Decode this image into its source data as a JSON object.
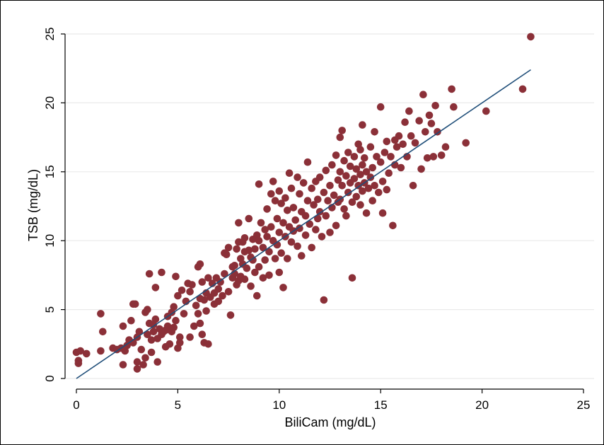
{
  "chart_data": {
    "type": "scatter",
    "title": "",
    "xlabel": "BiliCam (mg/dL)",
    "ylabel": "TSB (mg/dL)",
    "xlim": [
      0,
      25
    ],
    "ylim": [
      0,
      25
    ],
    "xticks": [
      0,
      5,
      10,
      15,
      20,
      25
    ],
    "yticks": [
      0,
      5,
      10,
      15,
      20,
      25
    ],
    "grid": "horizontal",
    "point_color": "#8b3038",
    "line_color": "#1f4e79",
    "fit_line": {
      "x": [
        0,
        22.4
      ],
      "y": [
        0.0,
        22.4
      ]
    },
    "series": [
      {
        "points": [
          [
            0,
            1.9
          ],
          [
            0.1,
            1.3
          ],
          [
            0.1,
            1.1
          ],
          [
            0.2,
            2.0
          ],
          [
            0.5,
            1.8
          ],
          [
            1.2,
            2.0
          ],
          [
            1.2,
            4.7
          ],
          [
            1.3,
            3.4
          ],
          [
            1.8,
            2.2
          ],
          [
            2.0,
            2.1
          ],
          [
            2.2,
            2.2
          ],
          [
            2.3,
            1.0
          ],
          [
            2.3,
            3.8
          ],
          [
            2.4,
            2.0
          ],
          [
            2.5,
            2.4
          ],
          [
            2.6,
            2.8
          ],
          [
            2.7,
            4.2
          ],
          [
            2.8,
            5.4
          ],
          [
            2.8,
            2.6
          ],
          [
            2.9,
            5.4
          ],
          [
            3.0,
            3.0
          ],
          [
            3.0,
            1.2
          ],
          [
            3.0,
            0.7
          ],
          [
            3.1,
            3.4
          ],
          [
            3.2,
            2.1
          ],
          [
            3.3,
            1.0
          ],
          [
            3.4,
            1.5
          ],
          [
            3.4,
            4.8
          ],
          [
            3.5,
            5.0
          ],
          [
            3.5,
            3.2
          ],
          [
            3.6,
            7.6
          ],
          [
            3.6,
            4.0
          ],
          [
            3.7,
            2.8
          ],
          [
            3.7,
            1.9
          ],
          [
            3.8,
            3.4
          ],
          [
            3.8,
            3.9
          ],
          [
            3.9,
            6.6
          ],
          [
            3.9,
            4.3
          ],
          [
            4.0,
            2.9
          ],
          [
            4.0,
            1.2
          ],
          [
            4.1,
            3.6
          ],
          [
            4.2,
            7.7
          ],
          [
            4.2,
            3.2
          ],
          [
            4.3,
            3.4
          ],
          [
            4.4,
            3.5
          ],
          [
            4.4,
            2.3
          ],
          [
            4.5,
            3.8
          ],
          [
            4.5,
            4.5
          ],
          [
            4.6,
            2.5
          ],
          [
            4.7,
            3.4
          ],
          [
            4.7,
            4.8
          ],
          [
            4.8,
            3.7
          ],
          [
            4.8,
            5.2
          ],
          [
            4.9,
            7.4
          ],
          [
            4.9,
            4.2
          ],
          [
            5.0,
            6.0
          ],
          [
            5.0,
            2.2
          ],
          [
            5.1,
            3.0
          ],
          [
            5.1,
            2.6
          ],
          [
            5.2,
            6.4
          ],
          [
            5.3,
            4.7
          ],
          [
            5.4,
            5.6
          ],
          [
            5.5,
            6.9
          ],
          [
            5.6,
            6.3
          ],
          [
            5.6,
            3.0
          ],
          [
            5.7,
            6.8
          ],
          [
            5.8,
            3.8
          ],
          [
            5.9,
            5.3
          ],
          [
            6.0,
            8.1
          ],
          [
            6.0,
            4.7
          ],
          [
            6.1,
            8.3
          ],
          [
            6.1,
            5.8
          ],
          [
            6.1,
            4.0
          ],
          [
            6.2,
            7.0
          ],
          [
            6.2,
            3.2
          ],
          [
            6.3,
            5.7
          ],
          [
            6.3,
            2.6
          ],
          [
            6.4,
            6.2
          ],
          [
            6.4,
            4.9
          ],
          [
            6.5,
            7.3
          ],
          [
            6.5,
            2.5
          ],
          [
            6.6,
            5.9
          ],
          [
            6.7,
            6.9
          ],
          [
            6.8,
            5.4
          ],
          [
            6.8,
            6.2
          ],
          [
            6.9,
            7.3
          ],
          [
            7.0,
            6.5
          ],
          [
            7.0,
            5.6
          ],
          [
            7.1,
            7.0
          ],
          [
            7.2,
            6.0
          ],
          [
            7.3,
            9.1
          ],
          [
            7.3,
            7.6
          ],
          [
            7.4,
            9.0
          ],
          [
            7.5,
            9.5
          ],
          [
            7.5,
            6.3
          ],
          [
            7.6,
            4.6
          ],
          [
            7.7,
            7.3
          ],
          [
            7.7,
            8.1
          ],
          [
            7.8,
            8.2
          ],
          [
            7.8,
            7.6
          ],
          [
            7.9,
            9.4
          ],
          [
            7.9,
            6.8
          ],
          [
            8.0,
            11.3
          ],
          [
            8.0,
            9.9
          ],
          [
            8.0,
            7.1
          ],
          [
            8.1,
            8.7
          ],
          [
            8.1,
            7.4
          ],
          [
            8.2,
            9.9
          ],
          [
            8.2,
            8.3
          ],
          [
            8.3,
            10.2
          ],
          [
            8.3,
            9.2
          ],
          [
            8.3,
            7.2
          ],
          [
            8.4,
            8.0
          ],
          [
            8.5,
            9.3
          ],
          [
            8.5,
            11.6
          ],
          [
            8.6,
            8.8
          ],
          [
            8.6,
            6.7
          ],
          [
            8.7,
            10.1
          ],
          [
            8.7,
            8.6
          ],
          [
            8.8,
            9.4
          ],
          [
            8.8,
            7.7
          ],
          [
            8.9,
            10.4
          ],
          [
            8.9,
            6.0
          ],
          [
            9.0,
            10.0
          ],
          [
            9.0,
            8.1
          ],
          [
            9.0,
            14.1
          ],
          [
            9.1,
            11.3
          ],
          [
            9.2,
            9.5
          ],
          [
            9.2,
            7.3
          ],
          [
            9.3,
            10.8
          ],
          [
            9.3,
            8.6
          ],
          [
            9.4,
            12.3
          ],
          [
            9.4,
            10.3
          ],
          [
            9.5,
            9.2
          ],
          [
            9.5,
            7.5
          ],
          [
            9.6,
            13.4
          ],
          [
            9.6,
            11.0
          ],
          [
            9.7,
            14.3
          ],
          [
            9.7,
            10.0
          ],
          [
            9.8,
            12.9
          ],
          [
            9.8,
            8.7
          ],
          [
            9.9,
            11.6
          ],
          [
            9.9,
            9.7
          ],
          [
            10.0,
            13.6
          ],
          [
            10.0,
            10.6
          ],
          [
            10.0,
            7.7
          ],
          [
            10.1,
            12.7
          ],
          [
            10.1,
            9.1
          ],
          [
            10.2,
            11.3
          ],
          [
            10.2,
            6.6
          ],
          [
            10.3,
            13.1
          ],
          [
            10.3,
            10.3
          ],
          [
            10.4,
            12.2
          ],
          [
            10.4,
            8.7
          ],
          [
            10.5,
            14.9
          ],
          [
            10.5,
            11.0
          ],
          [
            10.6,
            13.8
          ],
          [
            10.6,
            9.9
          ],
          [
            10.7,
            12.4
          ],
          [
            10.7,
            10.7
          ],
          [
            10.8,
            11.5
          ],
          [
            10.9,
            14.6
          ],
          [
            10.9,
            9.6
          ],
          [
            11.0,
            13.4
          ],
          [
            11.0,
            10.9
          ],
          [
            11.1,
            12.1
          ],
          [
            11.1,
            8.9
          ],
          [
            11.2,
            14.2
          ],
          [
            11.3,
            11.8
          ],
          [
            11.3,
            10.4
          ],
          [
            11.4,
            15.7
          ],
          [
            11.4,
            12.9
          ],
          [
            11.5,
            11.2
          ],
          [
            11.6,
            13.8
          ],
          [
            11.6,
            9.5
          ],
          [
            11.7,
            12.6
          ],
          [
            11.8,
            14.3
          ],
          [
            11.8,
            10.8
          ],
          [
            11.9,
            13.0
          ],
          [
            11.9,
            11.6
          ],
          [
            12.0,
            14.6
          ],
          [
            12.0,
            12.1
          ],
          [
            12.1,
            10.3
          ],
          [
            12.2,
            5.7
          ],
          [
            12.2,
            13.5
          ],
          [
            12.3,
            15.1
          ],
          [
            12.3,
            11.8
          ],
          [
            12.4,
            12.9
          ],
          [
            12.5,
            14.0
          ],
          [
            12.5,
            10.6
          ],
          [
            12.6,
            15.5
          ],
          [
            12.6,
            12.4
          ],
          [
            12.7,
            13.3
          ],
          [
            12.8,
            16.2
          ],
          [
            12.8,
            11.1
          ],
          [
            12.9,
            14.4
          ],
          [
            12.9,
            12.8
          ],
          [
            13.0,
            17.5
          ],
          [
            13.0,
            15.0
          ],
          [
            13.0,
            13.0
          ],
          [
            13.1,
            18.0
          ],
          [
            13.1,
            14.0
          ],
          [
            13.2,
            15.8
          ],
          [
            13.2,
            12.3
          ],
          [
            13.3,
            14.7
          ],
          [
            13.3,
            11.8
          ],
          [
            13.4,
            16.4
          ],
          [
            13.4,
            13.5
          ],
          [
            13.5,
            15.4
          ],
          [
            13.5,
            14.2
          ],
          [
            13.6,
            7.3
          ],
          [
            13.6,
            12.8
          ],
          [
            13.7,
            16.1
          ],
          [
            13.7,
            14.5
          ],
          [
            13.8,
            15.2
          ],
          [
            13.8,
            13.2
          ],
          [
            13.9,
            17.0
          ],
          [
            13.9,
            14.0
          ],
          [
            14.0,
            16.6
          ],
          [
            14.0,
            14.8
          ],
          [
            14.0,
            12.6
          ],
          [
            14.1,
            18.4
          ],
          [
            14.1,
            15.5
          ],
          [
            14.1,
            13.6
          ],
          [
            14.2,
            14.2
          ],
          [
            14.2,
            16.0
          ],
          [
            14.3,
            15.0
          ],
          [
            14.3,
            12.0
          ],
          [
            14.4,
            13.8
          ],
          [
            14.5,
            16.8
          ],
          [
            14.5,
            14.6
          ],
          [
            14.6,
            15.3
          ],
          [
            14.6,
            12.9
          ],
          [
            14.7,
            17.9
          ],
          [
            14.7,
            14.0
          ],
          [
            14.8,
            16.1
          ],
          [
            14.9,
            13.5
          ],
          [
            15.0,
            19.7
          ],
          [
            15.0,
            15.7
          ],
          [
            15.1,
            14.3
          ],
          [
            15.1,
            12.0
          ],
          [
            15.2,
            16.4
          ],
          [
            15.3,
            17.2
          ],
          [
            15.3,
            13.7
          ],
          [
            15.4,
            14.9
          ],
          [
            15.5,
            16.1
          ],
          [
            15.6,
            11.1
          ],
          [
            15.7,
            17.3
          ],
          [
            15.7,
            15.5
          ],
          [
            15.8,
            16.8
          ],
          [
            15.9,
            17.6
          ],
          [
            16.0,
            15.3
          ],
          [
            16.1,
            17.0
          ],
          [
            16.2,
            18.6
          ],
          [
            16.3,
            16.1
          ],
          [
            16.4,
            19.4
          ],
          [
            16.5,
            17.6
          ],
          [
            16.6,
            14.0
          ],
          [
            16.7,
            17.1
          ],
          [
            16.9,
            18.7
          ],
          [
            17.0,
            15.2
          ],
          [
            17.1,
            20.6
          ],
          [
            17.2,
            17.9
          ],
          [
            17.3,
            16.0
          ],
          [
            17.4,
            19.1
          ],
          [
            17.5,
            18.5
          ],
          [
            17.6,
            16.1
          ],
          [
            17.7,
            19.8
          ],
          [
            17.8,
            17.9
          ],
          [
            18.0,
            16.2
          ],
          [
            18.2,
            16.8
          ],
          [
            18.5,
            21.0
          ],
          [
            18.6,
            19.7
          ],
          [
            19.2,
            17.1
          ],
          [
            20.2,
            19.4
          ],
          [
            22.0,
            21.0
          ],
          [
            22.4,
            24.8
          ]
        ]
      }
    ]
  }
}
